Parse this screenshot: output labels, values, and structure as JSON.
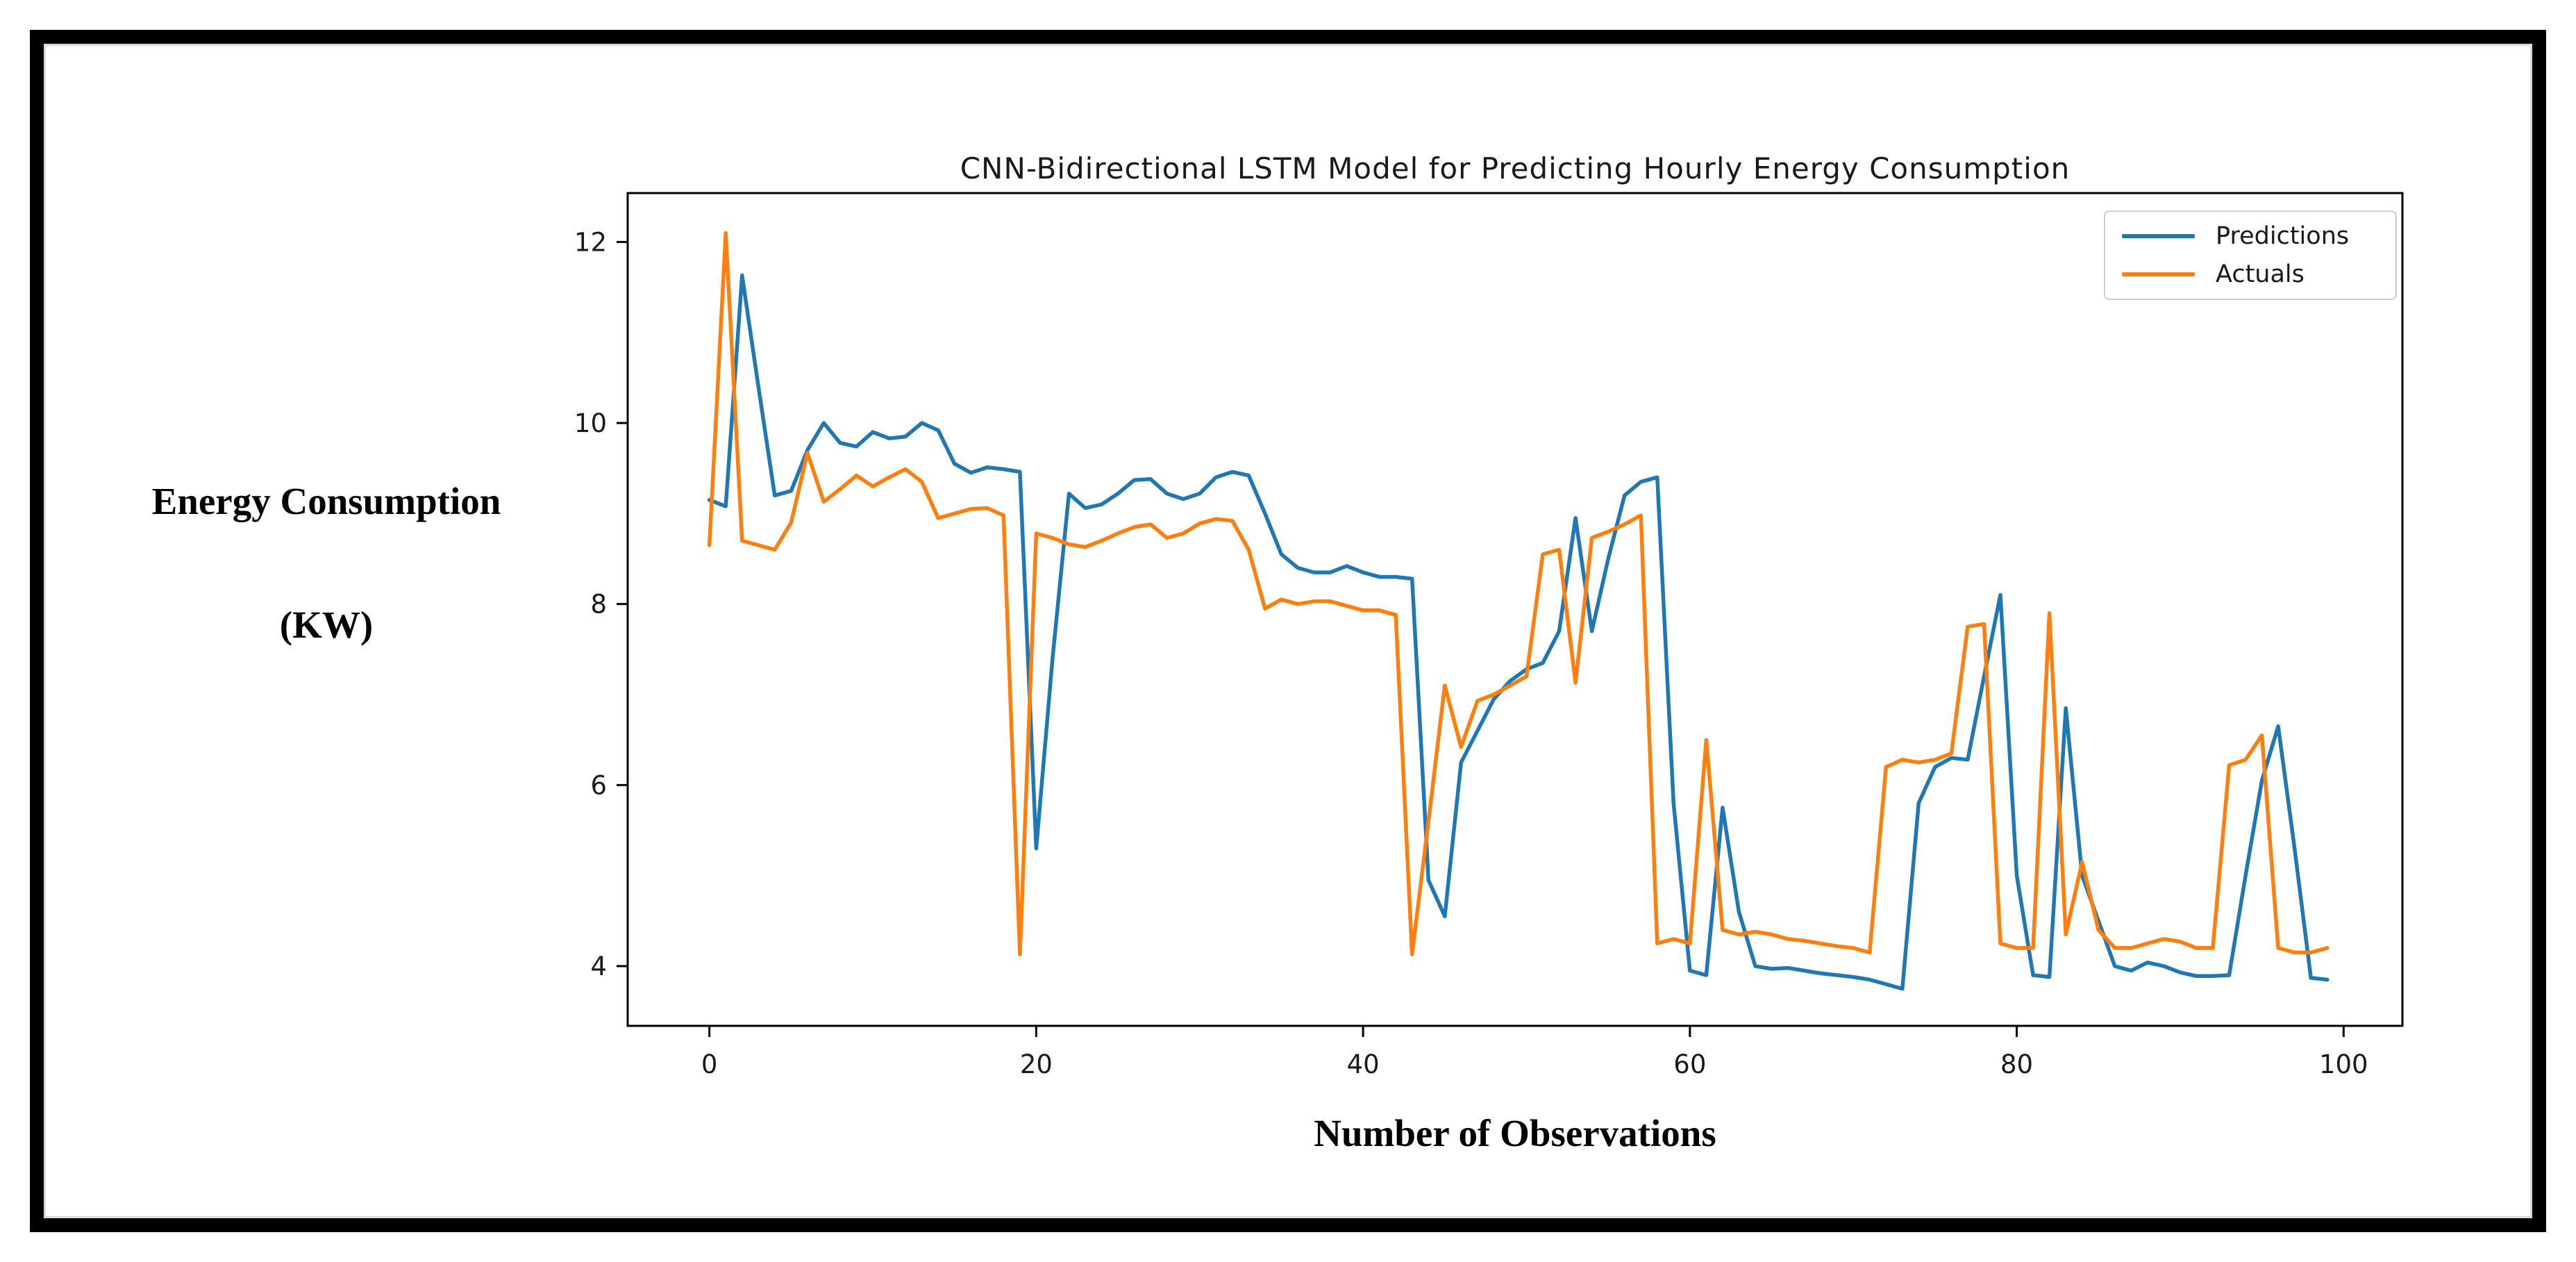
{
  "figure": {
    "background_color": "#ffffff",
    "frame_color": "#000000"
  },
  "chart_data": {
    "type": "line",
    "title": "CNN-Bidirectional LSTM Model for Predicting Hourly Energy Consumption",
    "xlabel": "Number of Observations",
    "ylabel_line1": "Energy Consumption",
    "ylabel_line2": "(KW)",
    "x_start": 0,
    "x_step": 1,
    "n_points": 100,
    "xlim": [
      -5,
      103.6
    ],
    "ylim": [
      3.34,
      12.54
    ],
    "xticks": [
      0,
      20,
      40,
      60,
      80,
      100
    ],
    "yticks": [
      4,
      6,
      8,
      10,
      12
    ],
    "grid": false,
    "legend_position": "upper right",
    "axis_color": "#000000",
    "tick_label_color": "#1a1a1a",
    "series": [
      {
        "name": "Predictions",
        "color": "#1f77b4",
        "values": [
          9.15,
          9.08,
          11.63,
          10.4,
          9.2,
          9.25,
          9.7,
          10.0,
          9.78,
          9.74,
          9.9,
          9.83,
          9.85,
          10.0,
          9.92,
          9.55,
          9.45,
          9.51,
          9.49,
          9.46,
          5.3,
          7.4,
          9.22,
          9.06,
          9.1,
          9.22,
          9.37,
          9.38,
          9.22,
          9.16,
          9.22,
          9.4,
          9.46,
          9.42,
          9.0,
          8.55,
          8.4,
          8.35,
          8.35,
          8.42,
          8.35,
          8.3,
          8.3,
          8.28,
          4.95,
          4.55,
          6.25,
          6.6,
          6.95,
          7.15,
          7.28,
          7.35,
          7.7,
          8.95,
          7.7,
          8.5,
          9.2,
          9.35,
          9.4,
          5.8,
          3.95,
          3.9,
          5.75,
          4.6,
          4.0,
          3.97,
          3.98,
          3.95,
          3.92,
          3.9,
          3.88,
          3.85,
          3.8,
          3.75,
          5.8,
          6.2,
          6.3,
          6.28,
          7.2,
          8.1,
          5.0,
          3.9,
          3.88,
          6.85,
          5.0,
          4.5,
          4.0,
          3.95,
          4.04,
          4.0,
          3.93,
          3.89,
          3.89,
          3.9,
          5.0,
          6.05,
          6.65,
          5.3,
          3.87,
          3.85
        ]
      },
      {
        "name": "Actuals",
        "color": "#ff7f0e",
        "values": [
          8.65,
          12.1,
          8.7,
          8.65,
          8.6,
          8.9,
          9.67,
          9.13,
          9.27,
          9.42,
          9.3,
          9.4,
          9.49,
          9.35,
          8.95,
          9.0,
          9.05,
          9.06,
          8.98,
          4.13,
          8.78,
          8.73,
          8.66,
          8.63,
          8.7,
          8.78,
          8.85,
          8.88,
          8.73,
          8.78,
          8.89,
          8.94,
          8.92,
          8.6,
          7.95,
          8.05,
          8.0,
          8.03,
          8.03,
          7.98,
          7.93,
          7.93,
          7.88,
          4.13,
          5.6,
          7.1,
          6.42,
          6.93,
          7.0,
          7.1,
          7.2,
          8.55,
          8.6,
          7.13,
          8.73,
          8.8,
          8.88,
          8.98,
          4.25,
          4.3,
          4.25,
          6.5,
          4.4,
          4.35,
          4.38,
          4.35,
          4.3,
          4.28,
          4.25,
          4.22,
          4.2,
          4.15,
          6.2,
          6.28,
          6.25,
          6.28,
          6.35,
          7.75,
          7.78,
          4.25,
          4.2,
          4.2,
          7.9,
          4.35,
          5.15,
          4.4,
          4.2,
          4.2,
          4.25,
          4.3,
          4.27,
          4.2,
          4.2,
          6.22,
          6.28,
          6.55,
          4.2,
          4.15,
          4.15,
          4.2
        ]
      }
    ]
  },
  "legend": {
    "entries": [
      {
        "label": "Predictions",
        "color": "#1f77b4"
      },
      {
        "label": "Actuals",
        "color": "#ff7f0e"
      }
    ]
  }
}
